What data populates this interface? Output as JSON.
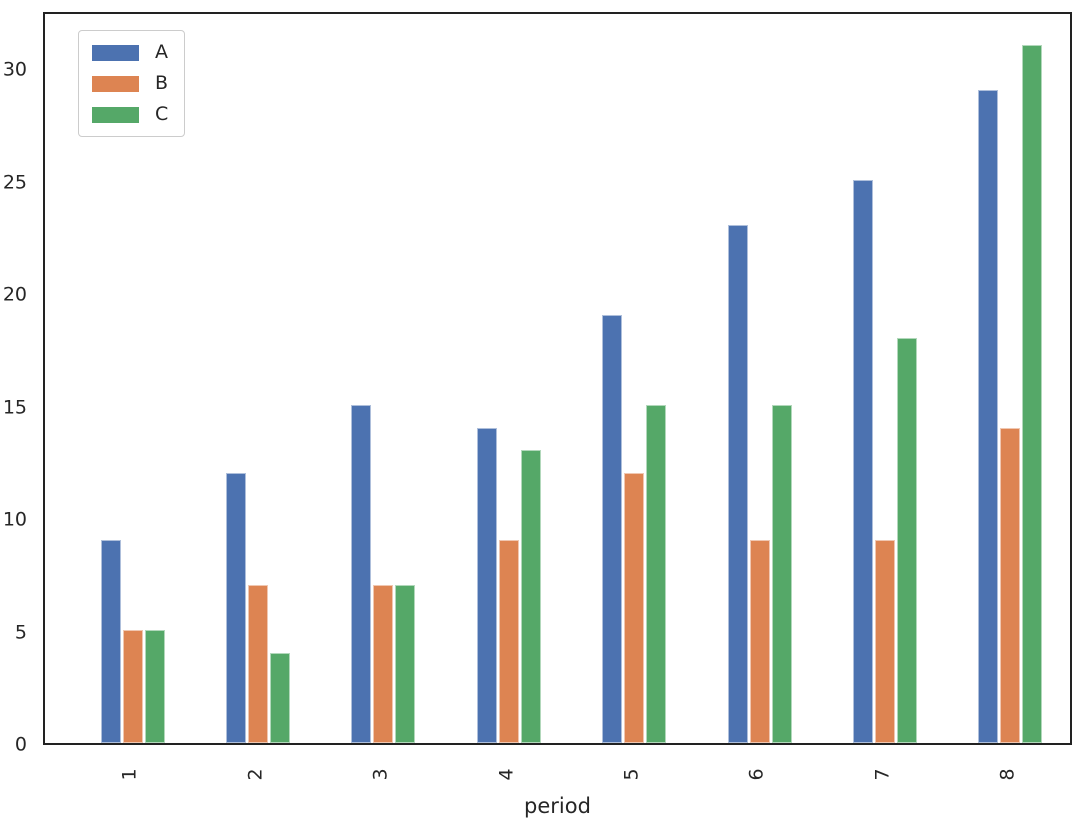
{
  "chart_data": {
    "type": "bar",
    "title": "",
    "xlabel": "period",
    "ylabel": "",
    "categories": [
      "1",
      "2",
      "3",
      "4",
      "5",
      "6",
      "7",
      "8"
    ],
    "series": [
      {
        "name": "A",
        "color": "#4C72B0",
        "values": [
          9,
          12,
          15,
          14,
          19,
          23,
          25,
          29
        ]
      },
      {
        "name": "B",
        "color": "#DD8452",
        "values": [
          5,
          7,
          7,
          9,
          12,
          9,
          9,
          14
        ]
      },
      {
        "name": "C",
        "color": "#55A868",
        "values": [
          5,
          4,
          7,
          13,
          15,
          15,
          18,
          31
        ]
      }
    ],
    "yticks": [
      0,
      5,
      10,
      15,
      20,
      25,
      30
    ],
    "ylim": [
      0,
      32.6
    ],
    "grid": false,
    "legend_position": "upper-left",
    "axis_color": "#222222",
    "text_color": "#262626"
  }
}
